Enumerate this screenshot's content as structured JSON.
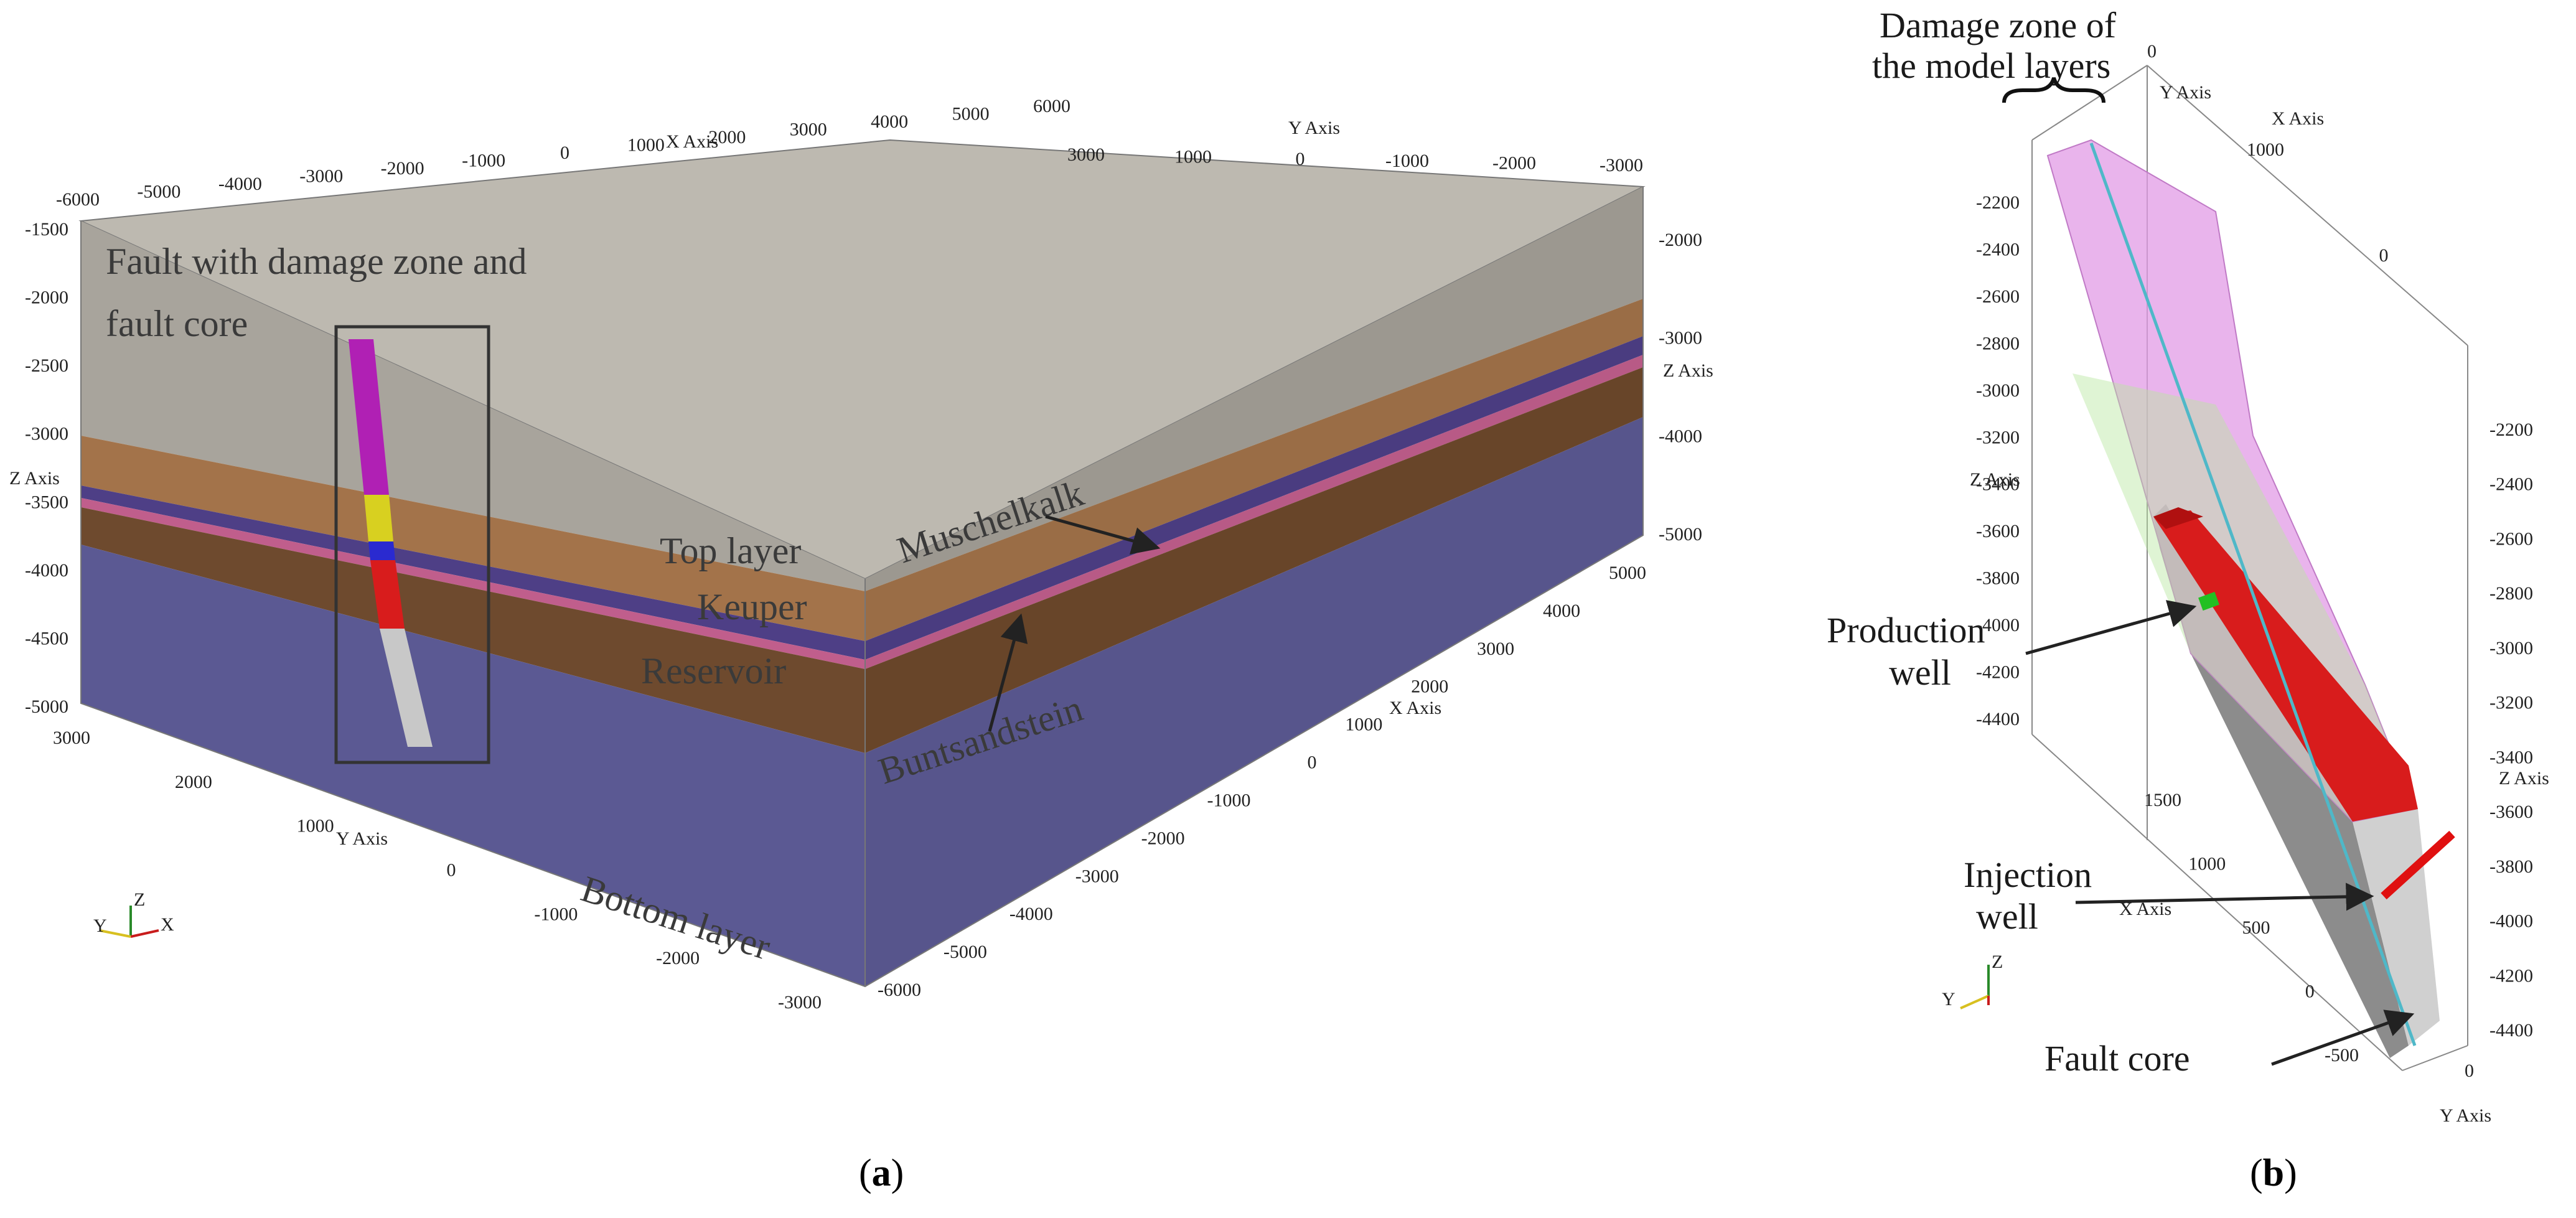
{
  "panel_a": {
    "caption": "(a)",
    "caption_letter": "a",
    "labels": {
      "fault_line1": "Fault with damage zone and",
      "fault_line2": "fault core",
      "top_layer": "Top layer",
      "keuper": "Keuper",
      "reservoir": "Reservoir",
      "muschelkalk": "Muschelkalk",
      "buntsandstein": "Buntsandstein",
      "bottom_layer": "Bottom layer"
    },
    "axis_titles": {
      "x_top": "X Axis",
      "y_top": "Y Axis",
      "z_left": "Z Axis",
      "z_right": "Z Axis",
      "x_right": "X Axis",
      "y_left": "Y Axis"
    },
    "ticks": {
      "top_x": [
        "-6000",
        "-5000",
        "-4000",
        "-3000",
        "-2000",
        "-1000",
        "0",
        "1000",
        "2000",
        "3000",
        "4000",
        "5000",
        "6000"
      ],
      "top_y": [
        "3000",
        "1000",
        "0",
        "-1000",
        "-2000",
        "-3000"
      ],
      "left_z": [
        "-1500",
        "-2000",
        "-2500",
        "-3000",
        "-3500",
        "-4000",
        "-4500",
        "-5000"
      ],
      "right_z": [
        "-2000",
        "-3000",
        "-4000",
        "-5000"
      ],
      "right_x": [
        "5000",
        "4000",
        "3000",
        "2000",
        "1000",
        "0",
        "-1000",
        "-2000",
        "-3000",
        "-4000",
        "-5000",
        "-6000"
      ],
      "bottom_y": [
        "3000",
        "2000",
        "1000",
        "0",
        "-1000",
        "-2000",
        "-3000"
      ]
    },
    "orientation": {
      "z": "Z",
      "y": "Y",
      "x": "X"
    },
    "colors": {
      "top_layer": "#a8a49c",
      "keuper": "#a3734a",
      "muschelkalk": "#4e3f86",
      "buntsandstein": "#c05e8c",
      "reservoir": "#6e4a2e",
      "bottom_layer": "#5b5993",
      "fault_top": "#b020b4",
      "fault_yellow": "#d8d020",
      "fault_blue": "#2a2ad0",
      "fault_red": "#d81c1c",
      "fault_bottom": "#c8c8c8"
    }
  },
  "panel_b": {
    "caption": "(b)",
    "caption_letter": "b",
    "labels": {
      "damage_line1": "Damage zone of",
      "damage_line2": "the model layers",
      "production_line1": "Production",
      "production_line2": "well",
      "injection_line1": "Injection",
      "injection_line2": "well",
      "fault_core": "Fault core"
    },
    "axis_titles": {
      "y_top": "Y Axis",
      "x_top": "X Axis",
      "z_left": "Z Axis",
      "z_right": "Z Axis",
      "x_left": "X Axis",
      "y_bottom": "Y Axis"
    },
    "ticks": {
      "top_y": "0",
      "top_x": [
        "1000",
        "0"
      ],
      "left_z": [
        "-2200",
        "-2400",
        "-2600",
        "-2800",
        "-3000",
        "-3200",
        "-3400",
        "-3600",
        "-3800",
        "-4000",
        "-4200",
        "-4400"
      ],
      "right_z": [
        "-2200",
        "-2400",
        "-2600",
        "-2800",
        "-3000",
        "-3200",
        "-3400",
        "-3600",
        "-3800",
        "-4000",
        "-4200",
        "-4400"
      ],
      "left_x": [
        "1500",
        "1000",
        "500",
        "0",
        "-500"
      ],
      "bottom_y": "0"
    },
    "orientation": {
      "z": "Z",
      "y": "Y"
    },
    "colors": {
      "damage_zone": "#e29be6",
      "reservoir": "#d81c1c",
      "fault_grey": "#8c8c8c",
      "production_well": "#22c022",
      "injection_well": "#e01010",
      "fault_core_line": "#4fb8c8"
    }
  }
}
